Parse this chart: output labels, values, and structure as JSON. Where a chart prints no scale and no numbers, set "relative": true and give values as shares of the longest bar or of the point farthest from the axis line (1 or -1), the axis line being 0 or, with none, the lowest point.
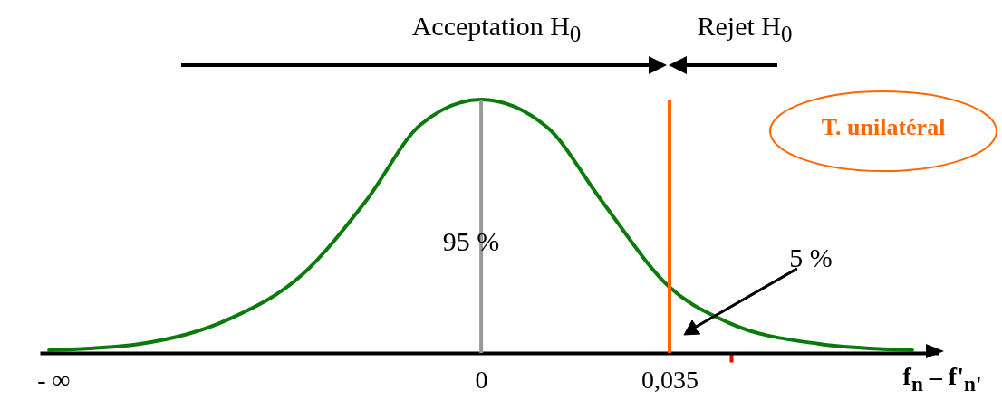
{
  "chart_data": {
    "type": "line",
    "relative": true,
    "xlabel": "f$_{n}$ – f'$_{n'}$",
    "annotations": [
      "Acceptation H$_{0}$",
      "Rejet H$_{0}$",
      "T. unilatéral",
      "95 %",
      "5 %"
    ],
    "xlim": [
      -0.082,
      0.085
    ],
    "xticks": [
      {
        "value": -0.0795,
        "label": "- ∞"
      },
      0,
      {
        "value": 0.035,
        "label": "0,035"
      },
      {
        "value": 0.0465,
        "label": null
      }
    ],
    "series": [
      {
        "color": "#0a7a0a",
        "x": [
          -0.0803,
          -0.0634,
          -0.0466,
          -0.0332,
          -0.0214,
          -0.0113,
          0,
          0.0123,
          0.0224,
          0.035,
          0.0459,
          0.0628,
          0.0801
        ],
        "values": [
          0.011,
          0.036,
          0.136,
          0.31,
          0.6,
          0.9,
          1,
          0.89,
          0.6,
          0.26,
          0.12,
          0.036,
          0.011
        ]
      }
    ],
    "ref_lines": [
      {
        "axis": "x",
        "value": 0,
        "color": "#999999"
      },
      {
        "axis": "x",
        "value": 0.035,
        "color": "#ff6600"
      }
    ],
    "marker": "none",
    "line_style": "solid"
  }
}
